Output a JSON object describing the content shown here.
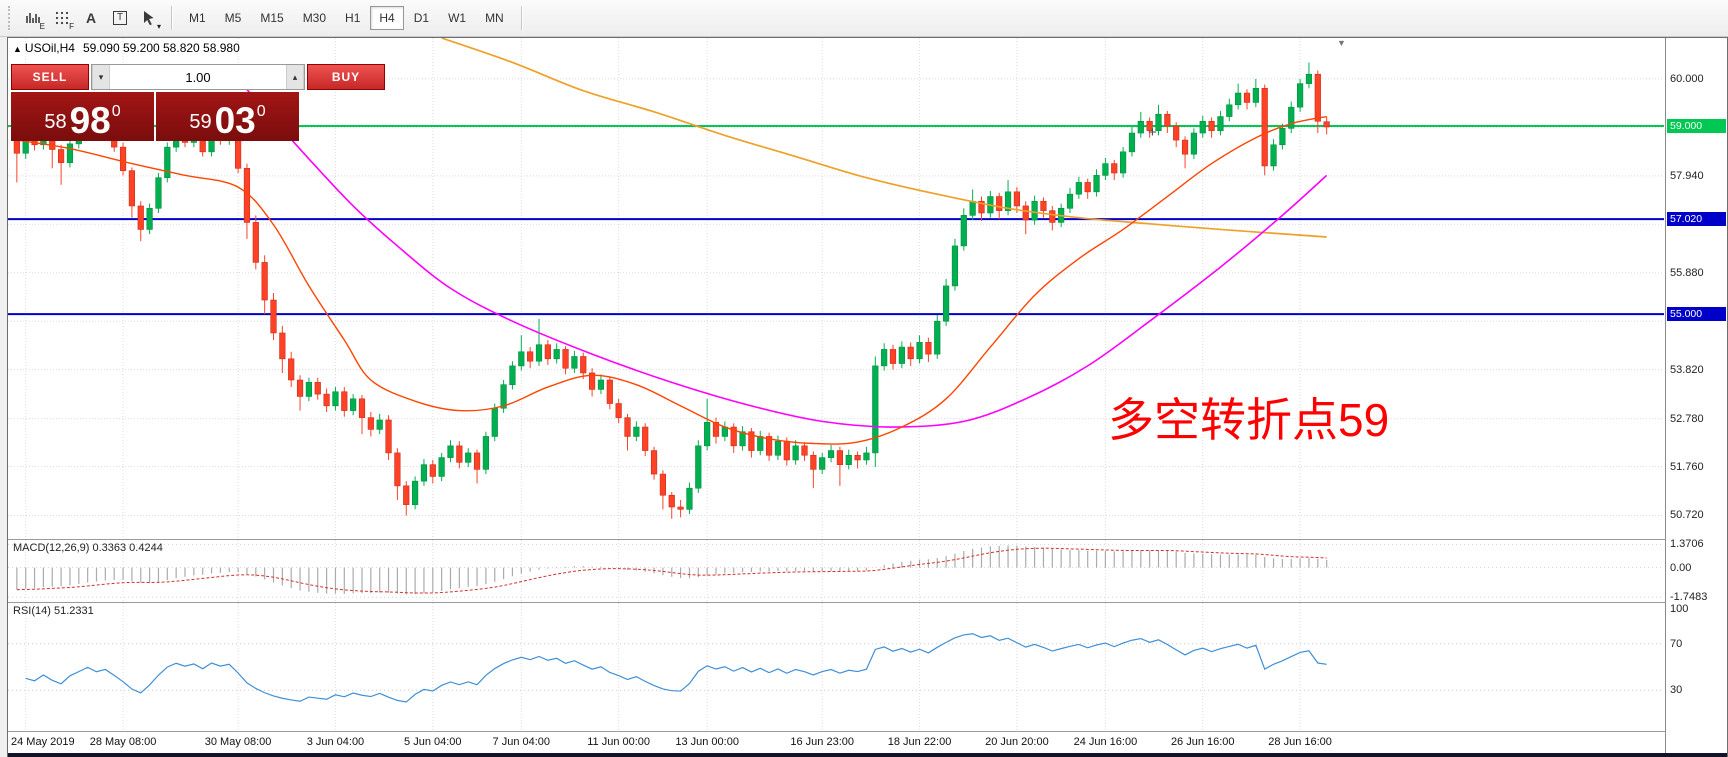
{
  "toolbar": {
    "icons": [
      {
        "name": "chart-expert-icon",
        "glyph": "bars",
        "badge": "E"
      },
      {
        "name": "chart-fractal-icon",
        "glyph": "grid",
        "badge": "F"
      },
      {
        "name": "text-label-icon",
        "glyph": "A",
        "badge": ""
      },
      {
        "name": "text-box-icon",
        "glyph": "T",
        "badge": ""
      },
      {
        "name": "crosshair-tool-icon",
        "glyph": "cursor",
        "badge": "▾"
      }
    ],
    "timeframes": [
      "M1",
      "M5",
      "M15",
      "M30",
      "H1",
      "H4",
      "D1",
      "W1",
      "MN"
    ],
    "active_timeframe": "H4"
  },
  "chart": {
    "symbol_label": "USOil,H4",
    "ohlc_label": "59.090 59.200 58.820 58.980",
    "trade_panel": {
      "sell_label": "SELL",
      "buy_label": "BUY",
      "volume": "1.00",
      "sell_price": {
        "int": "58",
        "pips": "98",
        "sup": "0"
      },
      "buy_price": {
        "int": "59",
        "pips": "03",
        "sup": "0"
      }
    },
    "annotation": {
      "text": "多空转折点59",
      "color": "#FF0000"
    },
    "price_axis": {
      "ticks": [
        {
          "label": "60.000",
          "price": 60.0
        },
        {
          "label": "57.940",
          "price": 57.94
        },
        {
          "label": "55.880",
          "price": 55.88
        },
        {
          "label": "53.820",
          "price": 53.82
        },
        {
          "label": "52.780",
          "price": 52.78
        },
        {
          "label": "51.760",
          "price": 51.76
        },
        {
          "label": "50.720",
          "price": 50.72
        }
      ],
      "badges": [
        {
          "label": "59.000",
          "price": 59.0,
          "color": "#00C853"
        },
        {
          "label": "57.020",
          "price": 57.02,
          "color": "#0000C8"
        },
        {
          "label": "55.000",
          "price": 55.0,
          "color": "#0000C8"
        }
      ]
    }
  },
  "macd_panel": {
    "label": "MACD(12,26,9) 0.3363 0.4244",
    "ticks": [
      {
        "label": "1.3706",
        "value": 1.3706
      },
      {
        "label": "0.00",
        "value": 0
      },
      {
        "label": "-1.7483",
        "value": -1.7483
      }
    ]
  },
  "rsi_panel": {
    "label": "RSI(14) 51.2331",
    "ticks": [
      {
        "label": "100",
        "value": 100
      },
      {
        "label": "70",
        "value": 70
      },
      {
        "label": "30",
        "value": 30
      }
    ],
    "levels": [
      70,
      30
    ]
  },
  "time_axis": [
    {
      "label": "24 May 2019",
      "i": 1
    },
    {
      "label": "28 May 08:00",
      "i": 12
    },
    {
      "label": "30 May 08:00",
      "i": 25
    },
    {
      "label": "3 Jun 04:00",
      "i": 36
    },
    {
      "label": "5 Jun 04:00",
      "i": 47
    },
    {
      "label": "7 Jun 04:00",
      "i": 57
    },
    {
      "label": "11 Jun 00:00",
      "i": 68
    },
    {
      "label": "13 Jun 00:00",
      "i": 78
    },
    {
      "label": "16 Jun 23:00",
      "i": 91
    },
    {
      "label": "18 Jun 22:00",
      "i": 102
    },
    {
      "label": "20 Jun 20:00",
      "i": 113
    },
    {
      "label": "24 Jun 16:00",
      "i": 123
    },
    {
      "label": "26 Jun 16:00",
      "i": 134
    },
    {
      "label": "28 Jun 16:00",
      "i": 145
    }
  ],
  "chart_data": {
    "type": "candlestick",
    "symbol": "USOil",
    "timeframe": "H4",
    "ohlc_current": {
      "open": 59.09,
      "high": 59.2,
      "low": 58.82,
      "close": 58.98
    },
    "up_color": "#00B050",
    "down_color": "#FF4126",
    "grid_prices": [
      60.0,
      58.97,
      57.94,
      56.91,
      55.88,
      54.85,
      53.82,
      52.78,
      51.76,
      50.72
    ],
    "levels": [
      {
        "price": 59.0,
        "color": "#00C853",
        "width": 2
      },
      {
        "price": 57.02,
        "color": "#0000C8",
        "width": 2
      },
      {
        "price": 55.0,
        "color": "#0000C8",
        "width": 2
      }
    ],
    "candles": [
      [
        58.9,
        58.95,
        57.8,
        58.42
      ],
      [
        58.42,
        58.9,
        58.3,
        58.78
      ],
      [
        58.78,
        58.88,
        58.48,
        58.6
      ],
      [
        58.6,
        58.98,
        58.5,
        58.88
      ],
      [
        58.88,
        58.95,
        58.1,
        58.5
      ],
      [
        58.5,
        58.6,
        57.75,
        58.22
      ],
      [
        58.22,
        58.72,
        58.12,
        58.62
      ],
      [
        58.62,
        58.95,
        58.52,
        58.85
      ],
      [
        58.85,
        59.28,
        58.75,
        59.1
      ],
      [
        59.1,
        59.18,
        58.7,
        58.82
      ],
      [
        58.82,
        59.05,
        58.72,
        58.95
      ],
      [
        58.95,
        59.02,
        58.45,
        58.55
      ],
      [
        58.55,
        58.65,
        57.95,
        58.05
      ],
      [
        58.05,
        58.12,
        57.05,
        57.3
      ],
      [
        57.3,
        57.4,
        56.55,
        56.8
      ],
      [
        56.8,
        57.35,
        56.7,
        57.25
      ],
      [
        57.25,
        58.0,
        57.15,
        57.9
      ],
      [
        57.9,
        58.65,
        57.8,
        58.55
      ],
      [
        58.55,
        59.05,
        58.45,
        58.9
      ],
      [
        58.9,
        58.98,
        58.55,
        58.65
      ],
      [
        58.65,
        58.95,
        58.55,
        58.85
      ],
      [
        58.85,
        58.92,
        58.35,
        58.45
      ],
      [
        58.45,
        59.15,
        58.35,
        58.95
      ],
      [
        58.95,
        59.05,
        58.6,
        58.7
      ],
      [
        58.7,
        58.95,
        58.6,
        58.85
      ],
      [
        58.85,
        58.92,
        58.0,
        58.1
      ],
      [
        58.1,
        58.2,
        56.6,
        56.95
      ],
      [
        56.95,
        57.1,
        55.95,
        56.1
      ],
      [
        56.1,
        56.25,
        55.0,
        55.3
      ],
      [
        55.3,
        55.45,
        54.45,
        54.6
      ],
      [
        54.6,
        54.75,
        53.75,
        54.05
      ],
      [
        54.05,
        54.2,
        53.45,
        53.6
      ],
      [
        53.6,
        53.7,
        52.95,
        53.25
      ],
      [
        53.25,
        53.65,
        53.15,
        53.55
      ],
      [
        53.55,
        53.65,
        53.18,
        53.3
      ],
      [
        53.3,
        53.42,
        52.92,
        53.05
      ],
      [
        53.05,
        53.45,
        52.95,
        53.35
      ],
      [
        53.35,
        53.45,
        52.82,
        52.95
      ],
      [
        52.95,
        53.3,
        52.85,
        53.2
      ],
      [
        53.2,
        53.28,
        52.45,
        52.8
      ],
      [
        52.8,
        52.92,
        52.4,
        52.55
      ],
      [
        52.55,
        52.88,
        52.45,
        52.75
      ],
      [
        52.75,
        52.85,
        51.9,
        52.05
      ],
      [
        52.05,
        52.15,
        51.05,
        51.35
      ],
      [
        51.35,
        51.45,
        50.72,
        50.95
      ],
      [
        50.95,
        51.55,
        50.85,
        51.45
      ],
      [
        51.45,
        51.92,
        51.35,
        51.8
      ],
      [
        51.8,
        51.9,
        51.4,
        51.55
      ],
      [
        51.55,
        52.05,
        51.45,
        51.95
      ],
      [
        51.95,
        52.32,
        51.85,
        52.2
      ],
      [
        52.2,
        52.3,
        51.72,
        51.85
      ],
      [
        51.85,
        52.15,
        51.75,
        52.05
      ],
      [
        52.05,
        52.12,
        51.4,
        51.7
      ],
      [
        51.7,
        52.5,
        51.6,
        52.4
      ],
      [
        52.4,
        53.1,
        52.3,
        53.0
      ],
      [
        53.0,
        53.6,
        52.9,
        53.5
      ],
      [
        53.5,
        54.0,
        53.4,
        53.9
      ],
      [
        53.9,
        54.55,
        53.8,
        54.2
      ],
      [
        54.2,
        54.3,
        53.85,
        54.0
      ],
      [
        54.0,
        54.9,
        53.9,
        54.35
      ],
      [
        54.35,
        54.45,
        53.92,
        54.05
      ],
      [
        54.05,
        54.38,
        53.95,
        54.25
      ],
      [
        54.25,
        54.32,
        53.72,
        53.85
      ],
      [
        53.85,
        54.22,
        53.75,
        54.1
      ],
      [
        54.1,
        54.18,
        53.62,
        53.75
      ],
      [
        53.75,
        53.85,
        53.25,
        53.4
      ],
      [
        53.4,
        53.72,
        53.3,
        53.6
      ],
      [
        53.6,
        53.68,
        52.98,
        53.1
      ],
      [
        53.1,
        53.2,
        52.68,
        52.8
      ],
      [
        52.8,
        52.88,
        52.1,
        52.4
      ],
      [
        52.4,
        52.72,
        52.3,
        52.6
      ],
      [
        52.6,
        52.68,
        51.98,
        52.1
      ],
      [
        52.1,
        52.18,
        51.48,
        51.6
      ],
      [
        51.6,
        51.68,
        50.85,
        51.15
      ],
      [
        51.15,
        51.22,
        50.65,
        50.9
      ],
      [
        50.9,
        51.05,
        50.68,
        50.85
      ],
      [
        50.85,
        51.42,
        50.75,
        51.3
      ],
      [
        51.3,
        52.32,
        51.2,
        52.2
      ],
      [
        52.2,
        53.2,
        52.1,
        52.7
      ],
      [
        52.7,
        52.8,
        52.25,
        52.4
      ],
      [
        52.4,
        52.72,
        52.3,
        52.6
      ],
      [
        52.6,
        52.68,
        52.05,
        52.2
      ],
      [
        52.2,
        52.62,
        52.1,
        52.5
      ],
      [
        52.5,
        52.58,
        51.95,
        52.1
      ],
      [
        52.1,
        52.52,
        52.0,
        52.4
      ],
      [
        52.4,
        52.48,
        51.88,
        52.0
      ],
      [
        52.0,
        52.42,
        51.9,
        52.3
      ],
      [
        52.3,
        52.38,
        51.78,
        51.9
      ],
      [
        51.9,
        52.32,
        51.8,
        52.2
      ],
      [
        52.2,
        52.28,
        51.88,
        52.0
      ],
      [
        52.0,
        52.08,
        51.3,
        51.7
      ],
      [
        51.7,
        52.05,
        51.6,
        51.95
      ],
      [
        51.95,
        52.22,
        51.85,
        52.1
      ],
      [
        52.1,
        52.18,
        51.35,
        51.8
      ],
      [
        51.8,
        52.12,
        51.7,
        52.0
      ],
      [
        52.0,
        52.08,
        51.72,
        51.9
      ],
      [
        51.9,
        52.18,
        51.8,
        52.05
      ],
      [
        52.05,
        54.1,
        51.75,
        53.9
      ],
      [
        53.9,
        54.38,
        53.8,
        54.25
      ],
      [
        54.25,
        54.35,
        53.82,
        53.95
      ],
      [
        53.95,
        54.42,
        53.85,
        54.3
      ],
      [
        54.3,
        54.4,
        53.9,
        54.05
      ],
      [
        54.05,
        54.55,
        53.95,
        54.4
      ],
      [
        54.4,
        54.5,
        53.98,
        54.15
      ],
      [
        54.15,
        54.98,
        54.05,
        54.85
      ],
      [
        54.85,
        55.75,
        54.75,
        55.6
      ],
      [
        55.6,
        56.6,
        55.5,
        56.45
      ],
      [
        56.45,
        57.25,
        56.35,
        57.1
      ],
      [
        57.1,
        57.65,
        57.0,
        57.4
      ],
      [
        57.4,
        57.5,
        56.98,
        57.15
      ],
      [
        57.15,
        57.62,
        57.05,
        57.5
      ],
      [
        57.5,
        57.58,
        57.02,
        57.2
      ],
      [
        57.2,
        57.85,
        57.1,
        57.6
      ],
      [
        57.6,
        57.7,
        57.15,
        57.3
      ],
      [
        57.3,
        57.4,
        56.7,
        57.0
      ],
      [
        57.0,
        57.52,
        56.9,
        57.4
      ],
      [
        57.4,
        57.48,
        57.05,
        57.2
      ],
      [
        57.2,
        57.3,
        56.78,
        56.95
      ],
      [
        56.95,
        57.35,
        56.85,
        57.25
      ],
      [
        57.25,
        57.68,
        57.15,
        57.55
      ],
      [
        57.55,
        57.92,
        57.45,
        57.8
      ],
      [
        57.8,
        57.88,
        57.45,
        57.6
      ],
      [
        57.6,
        58.08,
        57.5,
        57.95
      ],
      [
        57.95,
        58.32,
        57.85,
        58.2
      ],
      [
        58.2,
        58.28,
        57.85,
        58.0
      ],
      [
        58.0,
        58.55,
        57.9,
        58.45
      ],
      [
        58.45,
        58.98,
        58.35,
        58.85
      ],
      [
        58.85,
        59.3,
        58.75,
        59.1
      ],
      [
        59.1,
        59.18,
        58.75,
        58.9
      ],
      [
        58.9,
        59.45,
        58.8,
        59.25
      ],
      [
        59.25,
        59.32,
        58.85,
        59.0
      ],
      [
        59.0,
        59.08,
        58.55,
        58.7
      ],
      [
        58.7,
        58.78,
        58.1,
        58.4
      ],
      [
        58.4,
        58.95,
        58.3,
        58.85
      ],
      [
        58.85,
        59.22,
        58.75,
        59.1
      ],
      [
        59.1,
        59.18,
        58.75,
        58.9
      ],
      [
        58.9,
        59.32,
        58.8,
        59.2
      ],
      [
        59.2,
        59.58,
        59.1,
        59.45
      ],
      [
        59.45,
        59.9,
        59.35,
        59.7
      ],
      [
        59.7,
        59.78,
        59.35,
        59.5
      ],
      [
        59.5,
        60.0,
        59.4,
        59.8
      ],
      [
        59.8,
        59.88,
        57.95,
        58.15
      ],
      [
        58.15,
        58.72,
        58.05,
        58.6
      ],
      [
        58.6,
        59.05,
        58.5,
        58.95
      ],
      [
        58.95,
        59.52,
        58.85,
        59.4
      ],
      [
        59.4,
        60.0,
        59.3,
        59.9
      ],
      [
        59.9,
        60.35,
        59.8,
        60.1
      ],
      [
        60.1,
        60.18,
        58.85,
        59.1
      ],
      [
        59.09,
        59.2,
        58.82,
        58.98
      ]
    ],
    "ma_lines": [
      {
        "name": "ma-slow",
        "color": "#EDA128",
        "width": 1.7,
        "points": [
          [
            48,
            60.87
          ],
          [
            56,
            60.35
          ],
          [
            64,
            59.75
          ],
          [
            72,
            59.3
          ],
          [
            80,
            58.8
          ],
          [
            88,
            58.35
          ],
          [
            96,
            57.9
          ],
          [
            104,
            57.55
          ],
          [
            112,
            57.25
          ],
          [
            120,
            57.05
          ],
          [
            128,
            56.92
          ],
          [
            136,
            56.8
          ],
          [
            142,
            56.72
          ],
          [
            148,
            56.64
          ]
        ]
      },
      {
        "name": "ma-medium",
        "color": "#FF00FF",
        "width": 1.6,
        "points": [
          [
            24,
            60.2
          ],
          [
            28,
            59.35
          ],
          [
            33,
            58.3
          ],
          [
            38,
            57.3
          ],
          [
            43,
            56.45
          ],
          [
            49,
            55.55
          ],
          [
            56,
            54.85
          ],
          [
            65,
            54.15
          ],
          [
            74,
            53.55
          ],
          [
            83,
            53.05
          ],
          [
            91,
            52.72
          ],
          [
            99,
            52.6
          ],
          [
            107,
            52.72
          ],
          [
            114,
            53.2
          ],
          [
            121,
            53.9
          ],
          [
            128,
            54.85
          ],
          [
            136,
            56.0
          ],
          [
            143,
            57.1
          ],
          [
            148,
            57.95
          ]
        ]
      },
      {
        "name": "ma-fast",
        "color": "#FF4500",
        "width": 1.4,
        "points": [
          [
            0,
            58.7
          ],
          [
            6,
            58.52
          ],
          [
            13,
            58.2
          ],
          [
            19,
            57.95
          ],
          [
            25,
            57.7
          ],
          [
            29,
            56.9
          ],
          [
            33,
            55.6
          ],
          [
            37,
            54.45
          ],
          [
            40,
            53.6
          ],
          [
            45,
            53.15
          ],
          [
            50,
            52.95
          ],
          [
            55,
            53.05
          ],
          [
            60,
            53.45
          ],
          [
            65,
            53.7
          ],
          [
            70,
            53.5
          ],
          [
            75,
            53.05
          ],
          [
            80,
            52.6
          ],
          [
            85,
            52.35
          ],
          [
            90,
            52.25
          ],
          [
            95,
            52.28
          ],
          [
            100,
            52.6
          ],
          [
            105,
            53.2
          ],
          [
            110,
            54.3
          ],
          [
            115,
            55.4
          ],
          [
            120,
            56.18
          ],
          [
            125,
            56.8
          ],
          [
            130,
            57.5
          ],
          [
            135,
            58.2
          ],
          [
            140,
            58.75
          ],
          [
            144,
            59.05
          ],
          [
            148,
            59.2
          ]
        ]
      }
    ],
    "indicators": {
      "macd": {
        "fast": 12,
        "slow": 26,
        "signal": 9,
        "main_value": 0.3363,
        "signal_value": 0.4244
      },
      "rsi": {
        "period": 14,
        "value": 51.2331
      }
    }
  }
}
